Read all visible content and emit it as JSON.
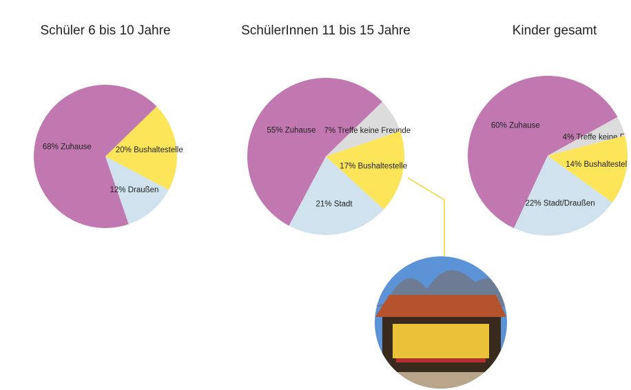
{
  "chart_data": [
    {
      "type": "pie",
      "title": "Schüler 6 bis 10 Jahre",
      "categories": [
        "Zuhause",
        "Bushaltestelle",
        "Draußen"
      ],
      "values": [
        68,
        20,
        12
      ],
      "value_labels": [
        "68%",
        "20%",
        "12%"
      ],
      "colors": [
        "#c178b0",
        "#fde55a",
        "#cfe2ee"
      ]
    },
    {
      "type": "pie",
      "title": "SchülerInnen 11 bis 15 Jahre",
      "categories": [
        "Zuhause",
        "Treffe keine Freunde",
        "Bushaltestelle",
        "Stadt"
      ],
      "values": [
        55,
        7,
        17,
        21
      ],
      "value_labels": [
        "55%",
        "7%",
        "17%",
        "21%"
      ],
      "colors": [
        "#c178b0",
        "#dcdcdc",
        "#fde55a",
        "#cfe2ee"
      ]
    },
    {
      "type": "pie",
      "title": "Kinder gesamt",
      "categories": [
        "Zuhause",
        "Treffe keine F",
        "Bushaltestel",
        "Stadt/Draußen"
      ],
      "values": [
        60,
        4,
        14,
        22
      ],
      "value_labels": [
        "60%",
        "4%",
        "14%",
        "22%"
      ],
      "colors": [
        "#c178b0",
        "#dcdcdc",
        "#fde55a",
        "#cfe2ee"
      ]
    }
  ]
}
